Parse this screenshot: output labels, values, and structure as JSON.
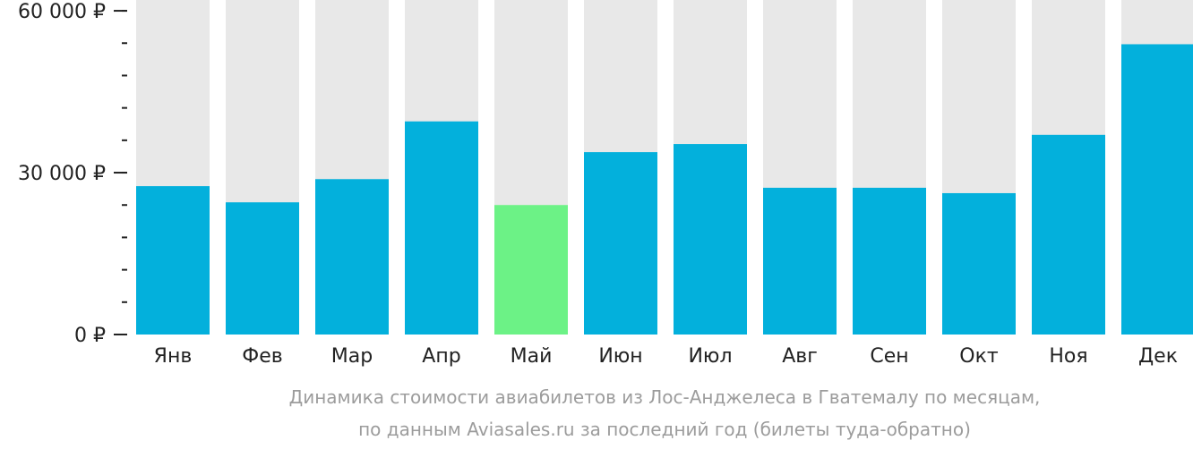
{
  "colors": {
    "background_bar": "#e8e8e8",
    "bar": "#03b0dc",
    "highlight_bar": "#6cf286",
    "axis": "#222222",
    "caption": "#9c9c9c"
  },
  "chart_data": {
    "type": "bar",
    "categories": [
      "Янв",
      "Фев",
      "Мар",
      "Апр",
      "Май",
      "Июн",
      "Июл",
      "Авг",
      "Сен",
      "Окт",
      "Ноя",
      "Дек"
    ],
    "values": [
      27500,
      24500,
      28800,
      39500,
      24000,
      33800,
      35300,
      27200,
      27200,
      26200,
      37000,
      53800
    ],
    "highlight_index": 4,
    "ylim": [
      0,
      62000
    ],
    "y_ticks": [
      {
        "value": 0,
        "label": "0 ₽"
      },
      {
        "value": 30000,
        "label": "30 000 ₽"
      },
      {
        "value": 60000,
        "label": "60 000 ₽"
      }
    ],
    "minor_tick_step": 6000,
    "title": "",
    "xlabel": "",
    "ylabel": "",
    "grid": false,
    "legend": "none"
  },
  "caption": {
    "line1": "Динамика стоимости авиабилетов из Лос-Анджелеса в Гватемалу по месяцам,",
    "line2": "по данным Aviasales.ru за последний год (билеты туда-обратно)"
  }
}
